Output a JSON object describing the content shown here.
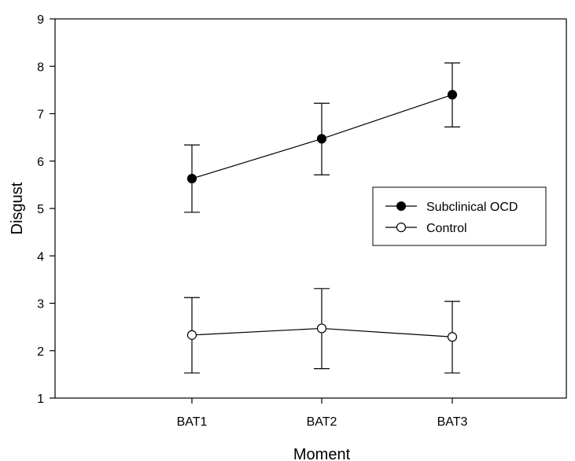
{
  "chart_data": {
    "type": "line",
    "title": "",
    "xlabel": "Moment",
    "ylabel": "Disgust",
    "categories": [
      "BAT1",
      "BAT2",
      "BAT3"
    ],
    "ylim": [
      1,
      9
    ],
    "yticks": [
      1,
      2,
      3,
      4,
      5,
      6,
      7,
      8,
      9
    ],
    "grid": false,
    "legend_position": "center-right",
    "series": [
      {
        "name": "Subclinical OCD",
        "marker": "filled-circle",
        "color": "#000000",
        "values": [
          5.63,
          6.47,
          7.4
        ],
        "error_low": [
          4.92,
          5.71,
          6.72
        ],
        "error_high": [
          6.34,
          7.22,
          8.07
        ]
      },
      {
        "name": "Control",
        "marker": "open-circle",
        "color": "#000000",
        "values": [
          2.33,
          2.47,
          2.29
        ],
        "error_low": [
          1.53,
          1.62,
          1.53
        ],
        "error_high": [
          3.12,
          3.31,
          3.04
        ]
      }
    ]
  }
}
